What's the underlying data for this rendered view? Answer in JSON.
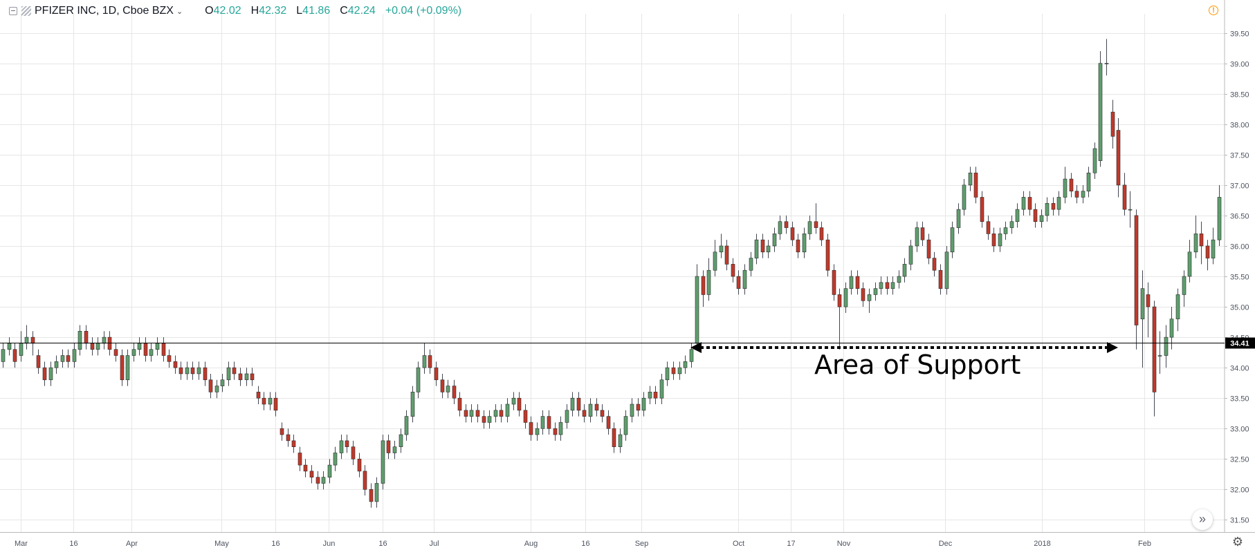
{
  "header": {
    "symbol": "PFIZER INC, 1D, Cboe BZX",
    "ohlc": [
      {
        "label": "O",
        "value": "42.02"
      },
      {
        "label": "H",
        "value": "42.32"
      },
      {
        "label": "L",
        "value": "41.86"
      },
      {
        "label": "C",
        "value": "42.24"
      }
    ],
    "change": "+0.04 (+0.09%)"
  },
  "icons": {
    "collapse": "collapse-icon",
    "logo": "symbol-logo-icon",
    "caret": "chevron-down-icon",
    "alert": "alert-icon",
    "scroll": "scroll-to-realtime-icon",
    "settings": "gear-icon"
  },
  "colors": {
    "up": "#26a69a",
    "up_body": "#5f9e6e",
    "down": "#c0392b",
    "wick": "#434651",
    "grid": "#e6e6e6",
    "annotation": "#000000"
  },
  "chart_data": {
    "type": "candlestick",
    "title": "PFIZER INC, 1D, Cboe BZX",
    "ylim": [
      31.3,
      39.7
    ],
    "y_ticks": [
      "31.50",
      "32.00",
      "32.50",
      "33.00",
      "33.50",
      "34.00",
      "34.50",
      "35.00",
      "35.50",
      "36.00",
      "36.50",
      "37.00",
      "37.50",
      "38.00",
      "38.50",
      "39.00",
      "39.50"
    ],
    "x_ticks": [
      "Mar",
      "16",
      "Apr",
      "May",
      "16",
      "Jun",
      "16",
      "Jul",
      "Aug",
      "16",
      "Sep",
      "Oct",
      "17",
      "Nov",
      "Dec",
      "2018",
      "Feb"
    ],
    "price_marker": "34.41",
    "support_level": 34.41,
    "annotation": "Area of Support",
    "grid": true,
    "candles": [
      [
        34.1,
        34.3,
        34.4,
        34.0
      ],
      [
        34.3,
        34.4,
        34.5,
        34.2
      ],
      [
        34.3,
        34.1,
        34.4,
        34.0
      ],
      [
        34.2,
        34.4,
        34.6,
        34.1
      ],
      [
        34.4,
        34.5,
        34.7,
        34.3
      ],
      [
        34.5,
        34.4,
        34.6,
        34.2
      ],
      [
        34.2,
        34.0,
        34.3,
        33.9
      ],
      [
        34.0,
        33.8,
        34.1,
        33.7
      ],
      [
        33.8,
        34.0,
        34.1,
        33.7
      ],
      [
        34.0,
        34.1,
        34.2,
        33.9
      ],
      [
        34.1,
        34.2,
        34.3,
        34.0
      ],
      [
        34.2,
        34.1,
        34.3,
        34.0
      ],
      [
        34.1,
        34.3,
        34.4,
        34.0
      ],
      [
        34.3,
        34.6,
        34.7,
        34.2
      ],
      [
        34.6,
        34.4,
        34.7,
        34.3
      ],
      [
        34.4,
        34.3,
        34.5,
        34.2
      ],
      [
        34.3,
        34.4,
        34.5,
        34.2
      ],
      [
        34.4,
        34.5,
        34.6,
        34.3
      ],
      [
        34.5,
        34.3,
        34.6,
        34.2
      ],
      [
        34.3,
        34.2,
        34.4,
        34.1
      ],
      [
        34.2,
        33.8,
        34.3,
        33.7
      ],
      [
        33.8,
        34.2,
        34.3,
        33.7
      ],
      [
        34.2,
        34.3,
        34.4,
        34.1
      ],
      [
        34.3,
        34.4,
        34.5,
        34.2
      ],
      [
        34.4,
        34.2,
        34.5,
        34.1
      ],
      [
        34.2,
        34.3,
        34.4,
        34.1
      ],
      [
        34.3,
        34.4,
        34.5,
        34.2
      ],
      [
        34.4,
        34.2,
        34.5,
        34.1
      ],
      [
        34.2,
        34.1,
        34.3,
        34.0
      ],
      [
        34.1,
        34.0,
        34.2,
        33.9
      ],
      [
        34.0,
        33.9,
        34.1,
        33.8
      ],
      [
        33.9,
        34.0,
        34.1,
        33.8
      ],
      [
        34.0,
        33.9,
        34.1,
        33.8
      ],
      [
        33.9,
        34.0,
        34.1,
        33.8
      ],
      [
        34.0,
        33.8,
        34.1,
        33.7
      ],
      [
        33.8,
        33.6,
        33.9,
        33.5
      ],
      [
        33.6,
        33.7,
        33.8,
        33.5
      ],
      [
        33.7,
        33.8,
        33.9,
        33.6
      ],
      [
        33.8,
        34.0,
        34.1,
        33.7
      ],
      [
        34.0,
        33.9,
        34.1,
        33.8
      ],
      [
        33.9,
        33.8,
        34.0,
        33.7
      ],
      [
        33.8,
        33.9,
        34.0,
        33.7
      ],
      [
        33.9,
        33.8,
        34.0,
        33.7
      ],
      [
        33.6,
        33.5,
        33.7,
        33.4
      ],
      [
        33.5,
        33.4,
        33.6,
        33.3
      ],
      [
        33.4,
        33.5,
        33.6,
        33.3
      ],
      [
        33.5,
        33.3,
        33.6,
        33.2
      ],
      [
        33.0,
        32.9,
        33.1,
        32.8
      ],
      [
        32.9,
        32.8,
        33.0,
        32.7
      ],
      [
        32.8,
        32.7,
        32.9,
        32.6
      ],
      [
        32.6,
        32.4,
        32.7,
        32.3
      ],
      [
        32.4,
        32.3,
        32.5,
        32.2
      ],
      [
        32.3,
        32.2,
        32.4,
        32.1
      ],
      [
        32.2,
        32.1,
        32.3,
        32.0
      ],
      [
        32.1,
        32.2,
        32.3,
        32.0
      ],
      [
        32.2,
        32.4,
        32.5,
        32.1
      ],
      [
        32.4,
        32.6,
        32.7,
        32.3
      ],
      [
        32.6,
        32.8,
        32.9,
        32.5
      ],
      [
        32.8,
        32.7,
        32.9,
        32.6
      ],
      [
        32.7,
        32.5,
        32.8,
        32.4
      ],
      [
        32.5,
        32.3,
        32.6,
        32.2
      ],
      [
        32.3,
        32.0,
        32.4,
        31.9
      ],
      [
        32.0,
        31.8,
        32.1,
        31.7
      ],
      [
        31.8,
        32.1,
        32.2,
        31.7
      ],
      [
        32.1,
        32.8,
        32.9,
        32.0
      ],
      [
        32.8,
        32.6,
        32.9,
        32.5
      ],
      [
        32.6,
        32.7,
        32.8,
        32.5
      ],
      [
        32.7,
        32.9,
        33.0,
        32.6
      ],
      [
        32.9,
        33.2,
        33.3,
        32.8
      ],
      [
        33.2,
        33.6,
        33.7,
        33.1
      ],
      [
        33.6,
        34.0,
        34.1,
        33.5
      ],
      [
        34.0,
        34.2,
        34.4,
        33.9
      ],
      [
        34.2,
        34.0,
        34.3,
        33.9
      ],
      [
        34.0,
        33.8,
        34.1,
        33.7
      ],
      [
        33.8,
        33.6,
        33.9,
        33.5
      ],
      [
        33.6,
        33.7,
        33.8,
        33.5
      ],
      [
        33.7,
        33.5,
        33.8,
        33.4
      ],
      [
        33.5,
        33.3,
        33.6,
        33.2
      ],
      [
        33.3,
        33.2,
        33.4,
        33.1
      ],
      [
        33.2,
        33.3,
        33.4,
        33.1
      ],
      [
        33.3,
        33.2,
        33.4,
        33.1
      ],
      [
        33.2,
        33.1,
        33.3,
        33.0
      ],
      [
        33.1,
        33.2,
        33.3,
        33.0
      ],
      [
        33.2,
        33.3,
        33.4,
        33.1
      ],
      [
        33.3,
        33.2,
        33.4,
        33.1
      ],
      [
        33.2,
        33.4,
        33.5,
        33.1
      ],
      [
        33.4,
        33.5,
        33.6,
        33.3
      ],
      [
        33.5,
        33.3,
        33.6,
        33.2
      ],
      [
        33.3,
        33.1,
        33.4,
        33.0
      ],
      [
        33.1,
        32.9,
        33.2,
        32.8
      ],
      [
        32.9,
        33.0,
        33.1,
        32.8
      ],
      [
        33.0,
        33.2,
        33.3,
        32.9
      ],
      [
        33.2,
        33.0,
        33.3,
        32.9
      ],
      [
        33.0,
        32.9,
        33.1,
        32.8
      ],
      [
        32.9,
        33.1,
        33.2,
        32.8
      ],
      [
        33.1,
        33.3,
        33.4,
        33.0
      ],
      [
        33.3,
        33.5,
        33.6,
        33.2
      ],
      [
        33.5,
        33.3,
        33.6,
        33.2
      ],
      [
        33.3,
        33.2,
        33.4,
        33.1
      ],
      [
        33.2,
        33.4,
        33.5,
        33.1
      ],
      [
        33.4,
        33.3,
        33.5,
        33.2
      ],
      [
        33.3,
        33.2,
        33.4,
        33.1
      ],
      [
        33.2,
        33.0,
        33.3,
        32.9
      ],
      [
        33.0,
        32.7,
        33.1,
        32.6
      ],
      [
        32.7,
        32.9,
        33.0,
        32.6
      ],
      [
        32.9,
        33.2,
        33.3,
        32.8
      ],
      [
        33.2,
        33.4,
        33.5,
        33.1
      ],
      [
        33.4,
        33.3,
        33.5,
        33.2
      ],
      [
        33.3,
        33.5,
        33.6,
        33.2
      ],
      [
        33.5,
        33.6,
        33.7,
        33.4
      ],
      [
        33.6,
        33.5,
        33.7,
        33.4
      ],
      [
        33.5,
        33.8,
        33.9,
        33.4
      ],
      [
        33.8,
        34.0,
        34.1,
        33.7
      ],
      [
        34.0,
        33.9,
        34.1,
        33.8
      ],
      [
        33.9,
        34.0,
        34.1,
        33.8
      ],
      [
        34.0,
        34.1,
        34.2,
        33.9
      ],
      [
        34.1,
        34.3,
        34.4,
        34.0
      ],
      [
        34.4,
        35.5,
        35.7,
        34.3
      ],
      [
        35.5,
        35.2,
        35.6,
        35.0
      ],
      [
        35.2,
        35.6,
        35.8,
        35.1
      ],
      [
        35.6,
        35.9,
        36.1,
        35.5
      ],
      [
        35.9,
        36.0,
        36.2,
        35.8
      ],
      [
        36.0,
        35.7,
        36.1,
        35.6
      ],
      [
        35.7,
        35.5,
        35.8,
        35.4
      ],
      [
        35.5,
        35.3,
        35.6,
        35.2
      ],
      [
        35.3,
        35.6,
        35.7,
        35.2
      ],
      [
        35.6,
        35.8,
        35.9,
        35.5
      ],
      [
        35.8,
        36.1,
        36.2,
        35.7
      ],
      [
        36.1,
        35.9,
        36.2,
        35.8
      ],
      [
        35.9,
        36.0,
        36.1,
        35.8
      ],
      [
        36.0,
        36.2,
        36.3,
        35.9
      ],
      [
        36.2,
        36.4,
        36.5,
        36.1
      ],
      [
        36.4,
        36.3,
        36.5,
        36.2
      ],
      [
        36.3,
        36.1,
        36.4,
        36.0
      ],
      [
        36.1,
        35.9,
        36.2,
        35.8
      ],
      [
        35.9,
        36.2,
        36.3,
        35.8
      ],
      [
        36.2,
        36.4,
        36.5,
        36.1
      ],
      [
        36.4,
        36.3,
        36.7,
        36.2
      ],
      [
        36.3,
        36.1,
        36.4,
        36.0
      ],
      [
        36.1,
        35.6,
        36.2,
        35.5
      ],
      [
        35.6,
        35.2,
        35.7,
        35.1
      ],
      [
        35.2,
        35.0,
        35.3,
        34.3
      ],
      [
        35.0,
        35.3,
        35.4,
        34.9
      ],
      [
        35.3,
        35.5,
        35.6,
        35.2
      ],
      [
        35.5,
        35.3,
        35.6,
        35.2
      ],
      [
        35.3,
        35.1,
        35.4,
        35.0
      ],
      [
        35.1,
        35.2,
        35.3,
        34.9
      ],
      [
        35.2,
        35.3,
        35.4,
        35.1
      ],
      [
        35.3,
        35.4,
        35.5,
        35.2
      ],
      [
        35.4,
        35.3,
        35.5,
        35.2
      ],
      [
        35.3,
        35.4,
        35.5,
        35.2
      ],
      [
        35.4,
        35.5,
        35.6,
        35.3
      ],
      [
        35.5,
        35.7,
        35.8,
        35.4
      ],
      [
        35.7,
        36.0,
        36.1,
        35.6
      ],
      [
        36.0,
        36.3,
        36.4,
        35.9
      ],
      [
        36.3,
        36.1,
        36.4,
        36.0
      ],
      [
        36.1,
        35.8,
        36.2,
        35.7
      ],
      [
        35.8,
        35.6,
        35.9,
        35.5
      ],
      [
        35.6,
        35.3,
        35.7,
        35.2
      ],
      [
        35.3,
        35.9,
        36.0,
        35.2
      ],
      [
        35.9,
        36.3,
        36.4,
        35.8
      ],
      [
        36.3,
        36.6,
        36.7,
        36.2
      ],
      [
        36.6,
        37.0,
        37.1,
        36.5
      ],
      [
        37.0,
        37.2,
        37.3,
        36.9
      ],
      [
        37.2,
        36.8,
        37.3,
        36.7
      ],
      [
        36.8,
        36.4,
        36.9,
        36.3
      ],
      [
        36.4,
        36.2,
        36.5,
        36.1
      ],
      [
        36.2,
        36.0,
        36.3,
        35.9
      ],
      [
        36.0,
        36.2,
        36.3,
        35.9
      ],
      [
        36.2,
        36.3,
        36.4,
        36.1
      ],
      [
        36.3,
        36.4,
        36.5,
        36.2
      ],
      [
        36.4,
        36.6,
        36.7,
        36.3
      ],
      [
        36.6,
        36.8,
        36.9,
        36.5
      ],
      [
        36.8,
        36.6,
        36.9,
        36.5
      ],
      [
        36.6,
        36.4,
        36.7,
        36.3
      ],
      [
        36.4,
        36.5,
        36.6,
        36.3
      ],
      [
        36.5,
        36.7,
        36.8,
        36.4
      ],
      [
        36.7,
        36.6,
        36.8,
        36.5
      ],
      [
        36.6,
        36.8,
        36.9,
        36.5
      ],
      [
        36.8,
        37.1,
        37.3,
        36.7
      ],
      [
        37.1,
        36.9,
        37.2,
        36.8
      ],
      [
        36.9,
        36.8,
        37.0,
        36.7
      ],
      [
        36.8,
        36.9,
        37.0,
        36.7
      ],
      [
        36.9,
        37.2,
        37.3,
        36.8
      ],
      [
        37.2,
        37.6,
        37.7,
        37.1
      ],
      [
        37.4,
        39.0,
        39.2,
        37.3
      ],
      [
        39.0,
        39.0,
        39.4,
        38.8
      ],
      [
        38.2,
        37.8,
        38.4,
        37.6
      ],
      [
        37.9,
        37.0,
        38.1,
        36.8
      ],
      [
        37.0,
        36.6,
        37.2,
        36.5
      ],
      [
        36.6,
        36.6,
        36.9,
        36.3
      ],
      [
        36.5,
        34.7,
        36.6,
        34.3
      ],
      [
        34.8,
        35.3,
        35.6,
        34.0
      ],
      [
        35.2,
        35.0,
        35.4,
        34.5
      ],
      [
        35.0,
        33.6,
        35.1,
        33.2
      ],
      [
        34.2,
        34.2,
        34.6,
        33.9
      ],
      [
        34.2,
        34.5,
        34.7,
        34.0
      ],
      [
        34.5,
        34.8,
        35.0,
        34.3
      ],
      [
        34.8,
        35.2,
        35.3,
        34.6
      ],
      [
        35.2,
        35.5,
        35.6,
        35.0
      ],
      [
        35.5,
        35.9,
        36.1,
        35.4
      ],
      [
        35.9,
        36.2,
        36.5,
        35.8
      ],
      [
        36.2,
        36.0,
        36.4,
        35.7
      ],
      [
        36.0,
        35.8,
        36.1,
        35.6
      ],
      [
        35.8,
        36.1,
        36.3,
        35.7
      ],
      [
        36.1,
        36.8,
        37.0,
        36.0
      ]
    ]
  }
}
